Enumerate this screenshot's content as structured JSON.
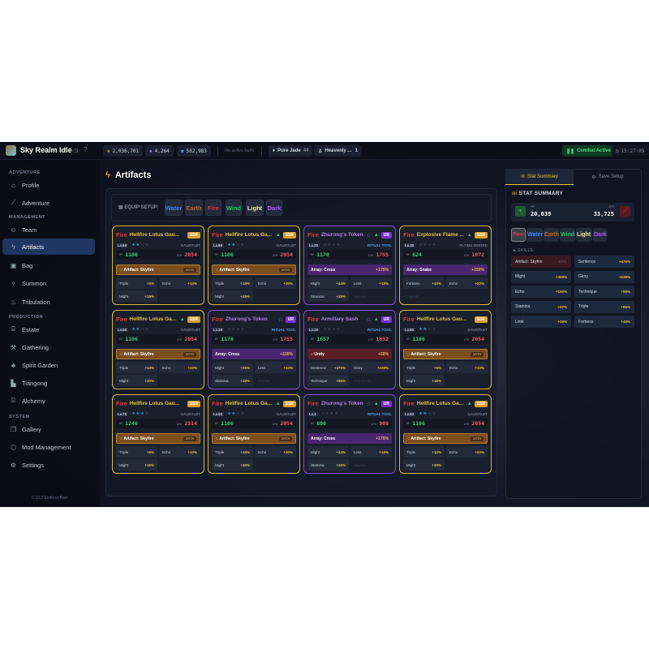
{
  "app": {
    "title": "Sky Realm Idle"
  },
  "topbar": {
    "currencies": [
      {
        "icon": "coin-icon",
        "value": "2,036,701"
      },
      {
        "icon": "gem-icon",
        "value": "4,264"
      },
      {
        "icon": "spirit-drop-icon",
        "value": "502,983"
      }
    ],
    "buffs": "No active buffs",
    "items": [
      {
        "icon": "jade-icon",
        "label": "Pure Jade",
        "count": "44"
      },
      {
        "icon": "flask-icon",
        "label": "Heavenly ...",
        "count": "1"
      }
    ],
    "combat": "Combat Active",
    "time": "15:27:05"
  },
  "sidebar": {
    "sections": [
      {
        "label": "ADVENTURE",
        "items": [
          {
            "label": "Profile",
            "icon": "home-icon"
          },
          {
            "label": "Adventure",
            "icon": "sword-icon"
          }
        ]
      },
      {
        "label": "MANAGEMENT",
        "items": [
          {
            "label": "Team",
            "icon": "users-icon"
          },
          {
            "label": "Artifacts",
            "icon": "lightning-icon",
            "active": true
          },
          {
            "label": "Bag",
            "icon": "bag-icon"
          },
          {
            "label": "Summon",
            "icon": "sparkle-icon"
          },
          {
            "label": "Tribulation",
            "icon": "flame-icon"
          }
        ]
      },
      {
        "label": "PRODUCTION",
        "items": [
          {
            "label": "Estate",
            "icon": "estate-icon"
          },
          {
            "label": "Gathering",
            "icon": "pickaxe-icon"
          },
          {
            "label": "Spirit Garden",
            "icon": "tree-icon"
          },
          {
            "label": "Tiangong",
            "icon": "factory-icon"
          },
          {
            "label": "Alchemy",
            "icon": "cauldron-icon"
          }
        ]
      },
      {
        "label": "SYSTEM",
        "items": [
          {
            "label": "Gallery",
            "icon": "book-icon"
          },
          {
            "label": "Mod Management",
            "icon": "cube-icon"
          },
          {
            "label": "Settings",
            "icon": "gear-icon"
          }
        ]
      }
    ],
    "version": "0.10.2 Endless Rain"
  },
  "main": {
    "title": "Artifacts",
    "equip_label": "EQUIP SETUP:",
    "elements": [
      {
        "label": "Water",
        "color": "#3b82f6"
      },
      {
        "label": "Earth",
        "color": "#b8652a"
      },
      {
        "label": "Fire",
        "color": "#e03a3a"
      },
      {
        "label": "Wind",
        "color": "#22c55e"
      },
      {
        "label": "Light",
        "color": "#f5f0a0"
      },
      {
        "label": "Dark",
        "color": "#a855f7"
      }
    ],
    "cards": [
      {
        "element": "Fire",
        "name": "Hellfire Lotus Gau...",
        "rarity": "SSR",
        "star": false,
        "up": false,
        "level": "Lv.60",
        "stars": 2,
        "type": "GAUNTLET",
        "hp": "1106",
        "atk": "2054",
        "skill": {
          "kind": "artifact",
          "label": "Artifact: Skyfire",
          "tag": "MYTH"
        },
        "stats": [
          [
            "Triple",
            "+5%"
          ],
          [
            "Echo",
            "+10%"
          ],
          [
            "Might",
            "+15%"
          ]
        ]
      },
      {
        "element": "Fire",
        "name": "Hellfire Lotus Ga...",
        "rarity": "SSR",
        "star": false,
        "up": true,
        "level": "Lv.60",
        "stars": 2,
        "type": "GAUNTLET",
        "hp": "1106",
        "atk": "2054",
        "skill": {
          "kind": "artifact",
          "label": "Artifact: Skyfire",
          "tag": "MYTH"
        },
        "stats": [
          [
            "Triple",
            "+15%"
          ],
          [
            "Echo",
            "+30%"
          ],
          [
            "Might",
            "+45%"
          ]
        ]
      },
      {
        "element": "Fire",
        "name": "Zhurong's Token",
        "rarity": "UR",
        "star": true,
        "up": true,
        "level": "Lv.20",
        "stars": 0,
        "type": "RITUAL TOOL",
        "hp": "1170",
        "atk": "1755",
        "skill": {
          "kind": "array",
          "label": "Array: Cross",
          "value": "+175%"
        },
        "stats": [
          [
            "Might",
            "+44%"
          ],
          [
            "Limit",
            "+18%"
          ],
          [
            "Stamina",
            "+26%"
          ]
        ],
        "locked": "Majesty"
      },
      {
        "element": "Fire",
        "name": "Explosive Flame ...",
        "rarity": "SSR",
        "star": false,
        "up": true,
        "level": "Lv.30",
        "stars": 0,
        "type": "FLYING SWORD",
        "hp": "624",
        "atk": "1072",
        "skill": {
          "kind": "array",
          "label": "Array: Snake",
          "value": "+150%"
        },
        "stats": [
          [
            "Fortress",
            "+40%"
          ],
          [
            "Echo",
            "+20%"
          ]
        ],
        "locked": "Majesty"
      },
      {
        "element": "Fire",
        "name": "Hellfire Lotus Ga...",
        "rarity": "SSR",
        "star": false,
        "up": true,
        "level": "Lv.60",
        "stars": 2,
        "type": "GAUNTLET",
        "hp": "1106",
        "atk": "2054",
        "skill": {
          "kind": "artifact",
          "label": "Artifact: Skyfire",
          "tag": "MYTH"
        },
        "stats": [
          [
            "Triple",
            "+10%"
          ],
          [
            "Echo",
            "+20%"
          ],
          [
            "Might",
            "+30%"
          ]
        ]
      },
      {
        "element": "Fire",
        "name": "Zhurong's Token",
        "rarity": "UR",
        "star": true,
        "up": false,
        "level": "Lv.20",
        "stars": 0,
        "type": "RITUAL TOOL",
        "hp": "1170",
        "atk": "1755",
        "skill": {
          "kind": "array",
          "label": "Array: Cross",
          "value": "+100%"
        },
        "stats": [
          [
            "Might",
            "+25%"
          ],
          [
            "Limit",
            "+10%"
          ],
          [
            "Stamina",
            "+15%"
          ]
        ],
        "locked": "Majesty"
      },
      {
        "element": "Fire",
        "name": "Armillary Sash",
        "rarity": "UR",
        "star": true,
        "up": true,
        "level": "Lv.20",
        "stars": 0,
        "type": "RITUAL TOOL",
        "hp": "1657",
        "atk": "1852",
        "skill": {
          "kind": "unity",
          "label": "Unity",
          "value": "+50%"
        },
        "stats": [
          [
            "Sentence",
            "+475%"
          ],
          [
            "Glory",
            "+238%"
          ],
          [
            "Technique",
            "+95%"
          ]
        ],
        "locked": "Mightiness"
      },
      {
        "element": "Fire",
        "name": "Hellfire Lotus Gau...",
        "rarity": "SSR",
        "star": false,
        "up": false,
        "level": "Lv.60",
        "stars": 2,
        "type": "GAUNTLET",
        "hp": "1106",
        "atk": "2054",
        "skill": {
          "kind": "artifact",
          "label": "Artifact: Skyfire",
          "tag": "MYTH"
        },
        "stats": [
          [
            "Triple",
            "+5%"
          ],
          [
            "Echo",
            "+10%"
          ],
          [
            "Might",
            "+15%"
          ]
        ]
      },
      {
        "element": "Fire",
        "name": "Hellfire Lotus Gau...",
        "rarity": "SSR",
        "star": false,
        "up": false,
        "level": "Lv.70",
        "stars": 3,
        "type": "GAUNTLET",
        "hp": "1246",
        "atk": "2314",
        "skill": {
          "kind": "artifact",
          "label": "Artifact: Skyfire",
          "tag": "MYTH"
        },
        "stats": [
          [
            "Triple",
            "+5%"
          ],
          [
            "Echo",
            "+10%"
          ],
          [
            "Might",
            "+15%"
          ]
        ]
      },
      {
        "element": "Fire",
        "name": "Hellfire Lotus Ga...",
        "rarity": "SSR",
        "star": false,
        "up": true,
        "level": "Lv.60",
        "stars": 2,
        "type": "GAUNTLET",
        "hp": "1106",
        "atk": "2054",
        "skill": {
          "kind": "artifact",
          "label": "Artifact: Skyfire",
          "tag": "MYTH"
        },
        "stats": [
          [
            "Triple",
            "+15%"
          ],
          [
            "Echo",
            "+30%"
          ],
          [
            "Might",
            "+45%"
          ]
        ]
      },
      {
        "element": "Fire",
        "name": "Zhurong's Token",
        "rarity": "UR",
        "star": true,
        "up": true,
        "level": "Lv.1",
        "stars": 0,
        "type": "RITUAL TOOL",
        "hp": "600",
        "atk": "900",
        "skill": {
          "kind": "array",
          "label": "Array: Cross",
          "value": "+175%"
        },
        "stats": [
          [
            "Might",
            "+44%"
          ],
          [
            "Limit",
            "+18%"
          ],
          [
            "Stamina",
            "+26%"
          ]
        ],
        "locked": "Majesty"
      },
      {
        "element": "Fire",
        "name": "Hellfire Lotus Ga...",
        "rarity": "SSR",
        "star": false,
        "up": true,
        "level": "Lv.60",
        "stars": 2,
        "type": "GAUNTLET",
        "hp": "1106",
        "atk": "2054",
        "skill": {
          "kind": "artifact",
          "label": "Artifact: Skyfire",
          "tag": "MYTH"
        },
        "stats": [
          [
            "Triple",
            "+10%"
          ],
          [
            "Echo",
            "+20%"
          ],
          [
            "Might",
            "+30%"
          ]
        ]
      }
    ]
  },
  "right": {
    "tabs": [
      {
        "label": "Stat Summary",
        "icon": "chart-icon",
        "active": true
      },
      {
        "label": "Save Setup",
        "icon": "gear-icon",
        "active": false
      }
    ],
    "heading": "STAT SUMMARY",
    "hp_label": "HP",
    "hp": "20,039",
    "atk_label": "ATK",
    "atk": "33,725",
    "elements": [
      {
        "label": "Fire",
        "color": "#e03a3a",
        "active": true
      },
      {
        "label": "Water",
        "color": "#3b82f6"
      },
      {
        "label": "Earth",
        "color": "#b8652a"
      },
      {
        "label": "Wind",
        "color": "#22c55e"
      },
      {
        "label": "Light",
        "color": "#f5f0a0"
      },
      {
        "label": "Dark",
        "color": "#a855f7"
      }
    ],
    "skills_label": "SKILLS",
    "skills": [
      {
        "label": "Artifact: Skyfire",
        "value": "EPIC",
        "artifact": true
      },
      {
        "label": "Sentence",
        "value": "+475%"
      },
      {
        "label": "Might",
        "value": "+308%"
      },
      {
        "label": "Glory",
        "value": "+238%"
      },
      {
        "label": "Echo",
        "value": "+150%"
      },
      {
        "label": "Technique",
        "value": "+95%"
      },
      {
        "label": "Stamina",
        "value": "+67%"
      },
      {
        "label": "Triple",
        "value": "+65%"
      },
      {
        "label": "Limit",
        "value": "+46%"
      },
      {
        "label": "Fortress",
        "value": "+40%"
      }
    ]
  }
}
